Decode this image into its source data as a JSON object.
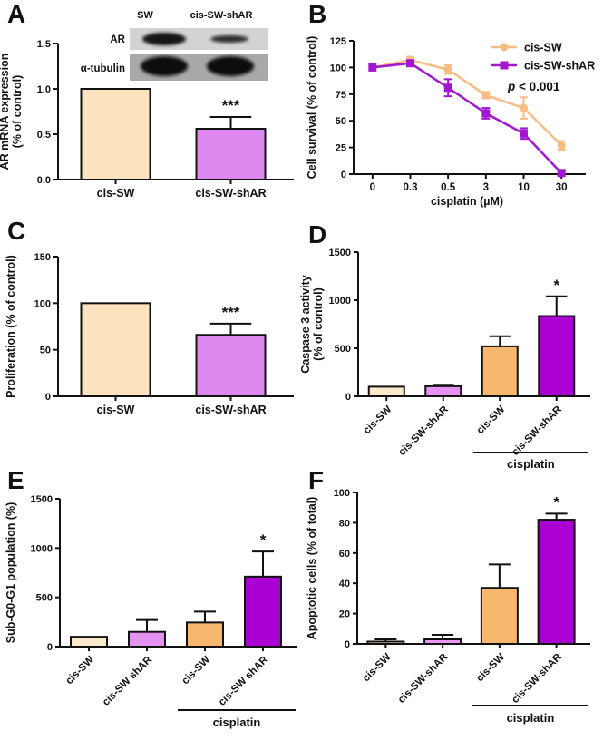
{
  "chart_data": [
    {
      "panel_letter": "A",
      "type": "bar",
      "ylabel_lines": [
        "AR mRNA expression",
        "(% of control)"
      ],
      "categories": [
        "cis-SW",
        "cis-SW-shAR"
      ],
      "values": [
        1.0,
        0.56
      ],
      "errors": [
        0,
        0.13
      ],
      "annotations": [
        "",
        "***"
      ],
      "bar_colors": [
        "#FBE3C0",
        "#DD88EF"
      ],
      "ylim": [
        0,
        1.5
      ],
      "yticks": [
        "0.0",
        "0.5",
        "1.0",
        "1.5"
      ],
      "grid": false,
      "inset": {
        "col_labels": [
          "SW",
          "cis-SW-shAR"
        ],
        "row_labels": [
          "AR",
          "α-tubulin"
        ]
      }
    },
    {
      "panel_letter": "B",
      "type": "line",
      "ylabel_lines": [
        "Cell survival (% of control)"
      ],
      "xlabel": "cisplatin (µM)",
      "x_categories": [
        "0",
        "0.3",
        "0.5",
        "3",
        "10",
        "30"
      ],
      "series": [
        {
          "name": "cis-SW",
          "marker": "circle",
          "color": "#F6BC82",
          "values": [
            100,
            107,
            98,
            74,
            62,
            27
          ],
          "errors": [
            0,
            3,
            4,
            3,
            10,
            4
          ]
        },
        {
          "name": "cis-SW-shAR",
          "marker": "square",
          "color": "#A218D2",
          "values": [
            100,
            104,
            81,
            57,
            38,
            1
          ],
          "errors": [
            0,
            2,
            8,
            5,
            5,
            2
          ]
        }
      ],
      "p_label_italic": "p",
      "p_label_rest": " < 0.001",
      "ylim": [
        0,
        125
      ],
      "yticks": [
        "0",
        "25",
        "50",
        "75",
        "100",
        "125"
      ],
      "legend_position": "top-right",
      "grid": false
    },
    {
      "panel_letter": "C",
      "type": "bar",
      "ylabel_lines": [
        "Proliferation (% of control)"
      ],
      "categories": [
        "cis-SW",
        "cis-SW-shAR"
      ],
      "values": [
        100,
        66
      ],
      "errors": [
        0,
        12
      ],
      "annotations": [
        "",
        "***"
      ],
      "bar_colors": [
        "#FBE3C0",
        "#DD88EF"
      ],
      "ylim": [
        0,
        150
      ],
      "yticks": [
        "0",
        "50",
        "100",
        "150"
      ],
      "grid": false
    },
    {
      "panel_letter": "D",
      "type": "bar",
      "ylabel_lines": [
        "Caspase 3 activity",
        "(% of control)"
      ],
      "categories": [
        "cis-SW",
        "cis-SW-shAR",
        "cis-SW",
        "cis-SW-shAR"
      ],
      "values": [
        100,
        105,
        520,
        835
      ],
      "errors": [
        0,
        15,
        105,
        205
      ],
      "annotations": [
        "",
        "",
        "",
        "*"
      ],
      "bar_colors": [
        "#FCE9CC",
        "#E392F1",
        "#F8B76F",
        "#AA00D4"
      ],
      "ylim": [
        0,
        1500
      ],
      "yticks": [
        "0",
        "500",
        "1000",
        "1500"
      ],
      "group_label": "cisplatin",
      "group_from": 2,
      "group_to": 3,
      "grid": false
    },
    {
      "panel_letter": "E",
      "type": "bar",
      "ylabel_lines": [
        "Sub-G0-G1 population (%)"
      ],
      "categories": [
        "cis-SW",
        "cis-SW shAR",
        "cis-SW",
        "cis-SW shAR"
      ],
      "values": [
        100,
        150,
        245,
        710
      ],
      "errors": [
        0,
        120,
        110,
        255
      ],
      "annotations": [
        "",
        "",
        "",
        "*"
      ],
      "bar_colors": [
        "#FCE9CC",
        "#E392F1",
        "#F8B76F",
        "#AA00D4"
      ],
      "ylim": [
        0,
        1500
      ],
      "yticks": [
        "0",
        "500",
        "1000",
        "1500"
      ],
      "group_label": "cisplatin",
      "group_from": 2,
      "group_to": 3,
      "grid": false
    },
    {
      "panel_letter": "F",
      "type": "bar",
      "ylabel_lines": [
        "Apoptotic cells (% of total)"
      ],
      "categories": [
        "cis-SW",
        "cis-SW-shAR",
        "cis-SW",
        "cis-SW-shAR"
      ],
      "values": [
        1.5,
        3,
        37,
        82
      ],
      "errors": [
        1.5,
        3,
        15.5,
        4
      ],
      "annotations": [
        "",
        "",
        "",
        "*"
      ],
      "bar_colors": [
        "#FCE9CC",
        "#E999F0",
        "#F8B76F",
        "#AA00D4"
      ],
      "ylim": [
        0,
        100
      ],
      "yticks": [
        "0",
        "20",
        "40",
        "60",
        "80",
        "100"
      ],
      "group_label": "cisplatin",
      "group_from": 2,
      "group_to": 3,
      "grid": false
    }
  ]
}
